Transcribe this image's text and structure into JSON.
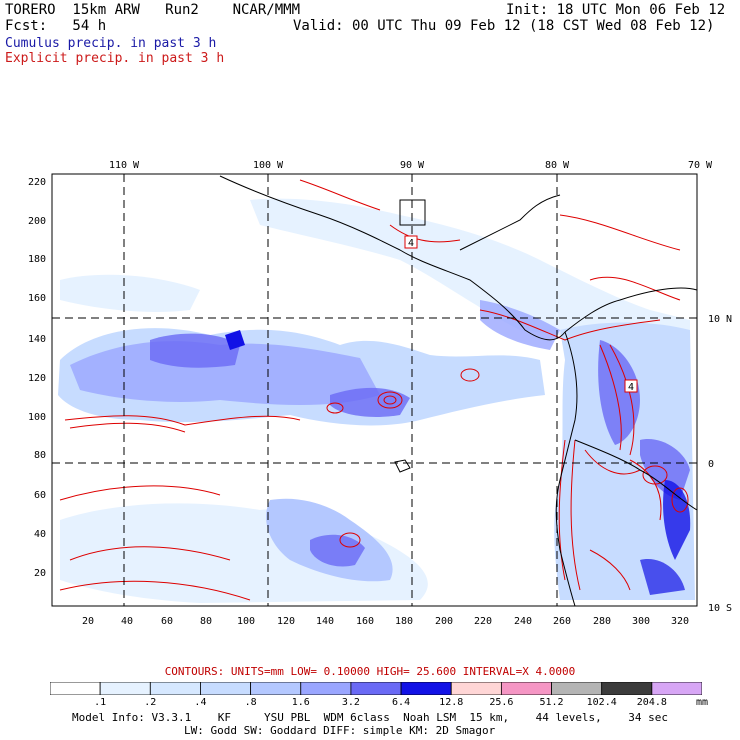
{
  "header": {
    "model": "TORERO  15km ARW   Run2    NCAR/MMM",
    "init": "Init: 18 UTC Mon 06 Feb 12",
    "fcst": "Fcst:   54 h",
    "valid": "Valid: 00 UTC Thu 09 Feb 12 (18 CST Wed 08 Feb 12)"
  },
  "legend": {
    "cumulus": "Cumulus precip. in past 3 h",
    "explicit": "Explicit precip. in past 3 h"
  },
  "map": {
    "lon_labels": [
      "110 W",
      "100 W",
      "90 W",
      "80 W",
      "70 W"
    ],
    "lat_labels": [
      "10 N",
      "0",
      "10 S"
    ],
    "y_ticks": [
      "220",
      "200",
      "180",
      "160",
      "140",
      "120",
      "100",
      "80",
      "60",
      "40",
      "20"
    ],
    "x_ticks": [
      "20",
      "40",
      "60",
      "80",
      "100",
      "120",
      "140",
      "160",
      "180",
      "200",
      "220",
      "240",
      "260",
      "280",
      "300",
      "320"
    ],
    "contour_markers": [
      "4",
      "4"
    ]
  },
  "contours_info": {
    "label": "CONTOURS:  UNITS=mm  LOW= 0.10000      HIGH=  25.600      INTERVAL=X  4.0000"
  },
  "colorbar": {
    "labels": [
      ".1",
      ".2",
      ".4",
      ".8",
      "1.6",
      "3.2",
      "6.4",
      "12.8",
      "25.6",
      "51.2",
      "102.4",
      "204.8"
    ],
    "unit": "mm",
    "colors": [
      "#ffffff",
      "#e6f2ff",
      "#d6e8ff",
      "#c7dcff",
      "#b4c8ff",
      "#9aa6ff",
      "#6a6af5",
      "#1212e6",
      "#ffd6d6",
      "#f596c4",
      "#b4b4b4",
      "#3c3c3c",
      "#d7a6f5"
    ]
  },
  "model_info": {
    "line1": "Model Info: V3.3.1    KF     YSU PBL  WDM 6class  Noah LSM  15 km,    44 levels,    34 sec",
    "line2": "LW: Godd SW: Goddard DIFF: simple KM: 2D Smagor"
  }
}
